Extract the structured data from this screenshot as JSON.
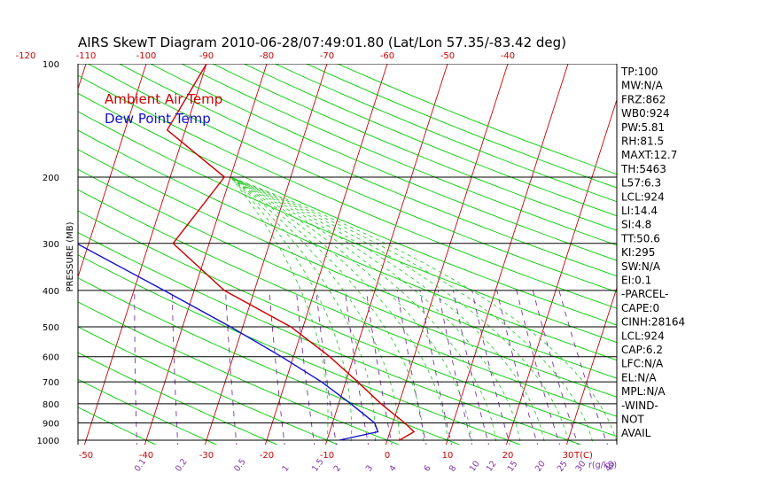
{
  "chart_data": {
    "type": "line",
    "title": "AIRS SkewT Diagram 2010-06-28/07:49:01.80 (Lat/Lon 57.35/-83.42 deg)",
    "ylabel": "PRESSURE (MB)",
    "xlabel_bottom_unit": "T(C)",
    "mixing_unit": "r(g/kg)",
    "pressure_ticks": [
      "100",
      "200",
      "300",
      "400",
      "500",
      "600",
      "700",
      "800",
      "900",
      "1000"
    ],
    "pressure_lines": [
      100,
      200,
      300,
      400,
      500,
      600,
      700,
      800,
      900,
      1000
    ],
    "top_temp_ticks": [
      "-120",
      "-110",
      "-100",
      "-90",
      "-80",
      "-70",
      "-60",
      "-50",
      "-40"
    ],
    "bottom_temp_ticks": [
      "-50",
      "-40",
      "-30",
      "-20",
      "-10",
      "0",
      "10",
      "20",
      "30"
    ],
    "mixing_ticks": [
      "0.1",
      "0.2",
      "0.5",
      "1",
      "1.5",
      "2",
      "3",
      "4",
      "6",
      "8",
      "10",
      "12",
      "15",
      "20",
      "25",
      "30",
      "40"
    ],
    "legend": [
      {
        "name": "Ambient Air Temp",
        "color": "#cc0000"
      },
      {
        "name": "Dew Point Temp",
        "color": "#1010cc"
      }
    ],
    "series": [
      {
        "name": "Ambient Air Temp",
        "color": "#cc0000",
        "points": [
          [
            100,
            -50
          ],
          [
            150,
            -53
          ],
          [
            200,
            -41
          ],
          [
            300,
            -46
          ],
          [
            400,
            -35
          ],
          [
            500,
            -22
          ],
          [
            600,
            -14
          ],
          [
            700,
            -8
          ],
          [
            800,
            -3
          ],
          [
            900,
            2
          ],
          [
            950,
            4
          ],
          [
            1000,
            2
          ]
        ]
      },
      {
        "name": "Dew Point Temp",
        "color": "#1010cc",
        "points": [
          [
            100,
            -96
          ],
          [
            150,
            -100
          ],
          [
            200,
            -90
          ],
          [
            250,
            -78
          ],
          [
            300,
            -62
          ],
          [
            400,
            -45
          ],
          [
            500,
            -32
          ],
          [
            600,
            -22
          ],
          [
            700,
            -14
          ],
          [
            800,
            -8
          ],
          [
            900,
            -3
          ],
          [
            950,
            -2
          ],
          [
            1000,
            -8
          ]
        ]
      }
    ],
    "grid": true,
    "line_colors": {
      "isotherm": "#cc0000",
      "dry_adiabat": "#00cc00",
      "moist_adiabat": "#33cc33",
      "mixing_ratio": "#7a2fa8",
      "isobar": "#000000"
    }
  },
  "indices": [
    "TP:100",
    "MW:N/A",
    "FRZ:862",
    "WB0:924",
    "PW:5.81",
    "RH:81.5",
    "MAXT:12.7",
    "TH:5463",
    "L57:6.3",
    "LCL:924",
    "LI:14.4",
    "SI:4.8",
    "TT:50.6",
    "KI:295",
    "SW:N/A",
    "EI:0.1",
    "-PARCEL-",
    "CAPE:0",
    "CINH:28164",
    "LCL:924",
    "CAP:6.2",
    "LFC:N/A",
    "EL:N/A",
    "MPL:N/A",
    "-WIND-",
    "NOT",
    "AVAIL"
  ]
}
